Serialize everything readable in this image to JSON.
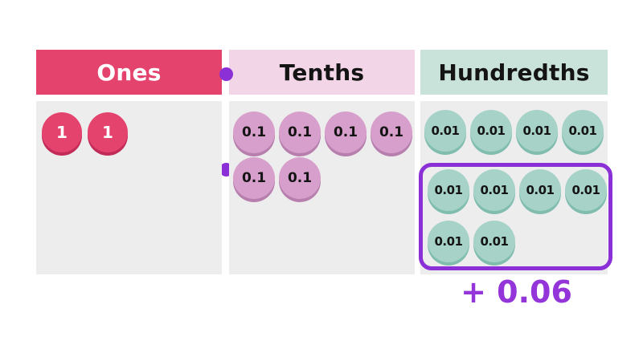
{
  "chart": {
    "columns": {
      "ones": {
        "label": "Ones",
        "counters": [
          "1",
          "1"
        ],
        "count": 2
      },
      "tenths": {
        "label": "Tenths",
        "row1": [
          "0.1",
          "0.1",
          "0.1",
          "0.1"
        ],
        "row2": [
          "0.1",
          "0.1"
        ],
        "count": 6
      },
      "hundredths": {
        "label": "Hundredths",
        "row1": [
          "0.01",
          "0.01",
          "0.01",
          "0.01"
        ],
        "boxed_row1": [
          "0.01",
          "0.01",
          "0.01",
          "0.01"
        ],
        "boxed_row2": [
          "0.01",
          "0.01"
        ],
        "count": 10,
        "boxed_count": 6
      }
    },
    "annotation": {
      "label": "+ 0.06"
    },
    "decimal_points": {
      "count": 2
    }
  },
  "colors": {
    "ones_accent": "#e4436e",
    "ones_rim": "#c22a58",
    "tenths_header_bg": "#f3d5e8",
    "tenths_counter": "#d79fcb",
    "tenths_rim": "#b77fae",
    "hundredths_header_bg": "#c9e2da",
    "hundredths_counter": "#a6d2c8",
    "hundredths_rim": "#80bdaf",
    "column_body_bg": "#ededed",
    "highlight_purple": "#8b2fd6",
    "annotation_purple": "#9335d9"
  }
}
